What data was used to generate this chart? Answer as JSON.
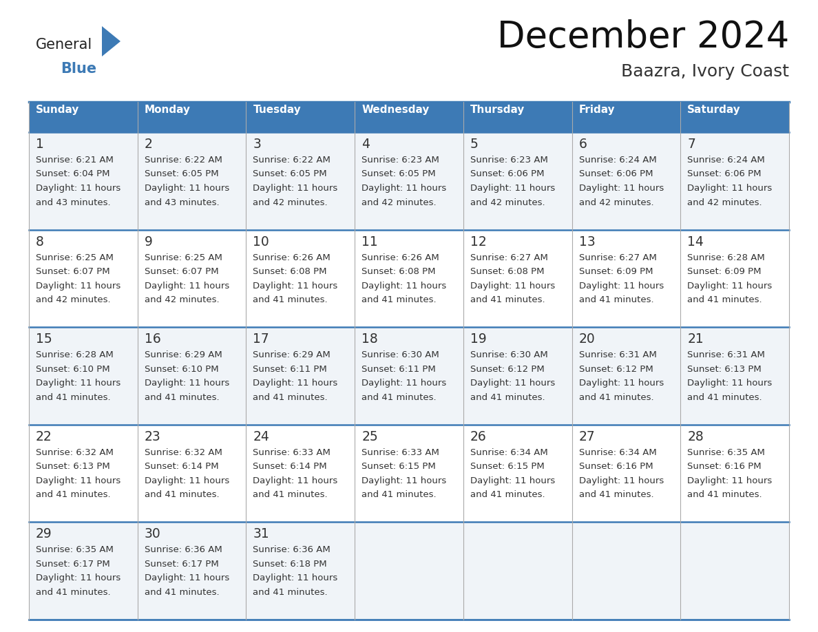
{
  "title": "December 2024",
  "subtitle": "Baazra, Ivory Coast",
  "days_of_week": [
    "Sunday",
    "Monday",
    "Tuesday",
    "Wednesday",
    "Thursday",
    "Friday",
    "Saturday"
  ],
  "header_bg": "#3d7ab5",
  "header_text": "#ffffff",
  "row0_bg": "#f0f4f8",
  "row1_bg": "#ffffff",
  "border_color": "#3d7ab5",
  "day_text_color": "#333333",
  "info_text_color": "#333333",
  "calendar_data": [
    [
      {
        "day": "1",
        "sunrise": "6:21 AM",
        "sunset": "6:04 PM",
        "daylight_h": "11 hours",
        "daylight_m": "and 43 minutes."
      },
      {
        "day": "2",
        "sunrise": "6:22 AM",
        "sunset": "6:05 PM",
        "daylight_h": "11 hours",
        "daylight_m": "and 43 minutes."
      },
      {
        "day": "3",
        "sunrise": "6:22 AM",
        "sunset": "6:05 PM",
        "daylight_h": "11 hours",
        "daylight_m": "and 42 minutes."
      },
      {
        "day": "4",
        "sunrise": "6:23 AM",
        "sunset": "6:05 PM",
        "daylight_h": "11 hours",
        "daylight_m": "and 42 minutes."
      },
      {
        "day": "5",
        "sunrise": "6:23 AM",
        "sunset": "6:06 PM",
        "daylight_h": "11 hours",
        "daylight_m": "and 42 minutes."
      },
      {
        "day": "6",
        "sunrise": "6:24 AM",
        "sunset": "6:06 PM",
        "daylight_h": "11 hours",
        "daylight_m": "and 42 minutes."
      },
      {
        "day": "7",
        "sunrise": "6:24 AM",
        "sunset": "6:06 PM",
        "daylight_h": "11 hours",
        "daylight_m": "and 42 minutes."
      }
    ],
    [
      {
        "day": "8",
        "sunrise": "6:25 AM",
        "sunset": "6:07 PM",
        "daylight_h": "11 hours",
        "daylight_m": "and 42 minutes."
      },
      {
        "day": "9",
        "sunrise": "6:25 AM",
        "sunset": "6:07 PM",
        "daylight_h": "11 hours",
        "daylight_m": "and 42 minutes."
      },
      {
        "day": "10",
        "sunrise": "6:26 AM",
        "sunset": "6:08 PM",
        "daylight_h": "11 hours",
        "daylight_m": "and 41 minutes."
      },
      {
        "day": "11",
        "sunrise": "6:26 AM",
        "sunset": "6:08 PM",
        "daylight_h": "11 hours",
        "daylight_m": "and 41 minutes."
      },
      {
        "day": "12",
        "sunrise": "6:27 AM",
        "sunset": "6:08 PM",
        "daylight_h": "11 hours",
        "daylight_m": "and 41 minutes."
      },
      {
        "day": "13",
        "sunrise": "6:27 AM",
        "sunset": "6:09 PM",
        "daylight_h": "11 hours",
        "daylight_m": "and 41 minutes."
      },
      {
        "day": "14",
        "sunrise": "6:28 AM",
        "sunset": "6:09 PM",
        "daylight_h": "11 hours",
        "daylight_m": "and 41 minutes."
      }
    ],
    [
      {
        "day": "15",
        "sunrise": "6:28 AM",
        "sunset": "6:10 PM",
        "daylight_h": "11 hours",
        "daylight_m": "and 41 minutes."
      },
      {
        "day": "16",
        "sunrise": "6:29 AM",
        "sunset": "6:10 PM",
        "daylight_h": "11 hours",
        "daylight_m": "and 41 minutes."
      },
      {
        "day": "17",
        "sunrise": "6:29 AM",
        "sunset": "6:11 PM",
        "daylight_h": "11 hours",
        "daylight_m": "and 41 minutes."
      },
      {
        "day": "18",
        "sunrise": "6:30 AM",
        "sunset": "6:11 PM",
        "daylight_h": "11 hours",
        "daylight_m": "and 41 minutes."
      },
      {
        "day": "19",
        "sunrise": "6:30 AM",
        "sunset": "6:12 PM",
        "daylight_h": "11 hours",
        "daylight_m": "and 41 minutes."
      },
      {
        "day": "20",
        "sunrise": "6:31 AM",
        "sunset": "6:12 PM",
        "daylight_h": "11 hours",
        "daylight_m": "and 41 minutes."
      },
      {
        "day": "21",
        "sunrise": "6:31 AM",
        "sunset": "6:13 PM",
        "daylight_h": "11 hours",
        "daylight_m": "and 41 minutes."
      }
    ],
    [
      {
        "day": "22",
        "sunrise": "6:32 AM",
        "sunset": "6:13 PM",
        "daylight_h": "11 hours",
        "daylight_m": "and 41 minutes."
      },
      {
        "day": "23",
        "sunrise": "6:32 AM",
        "sunset": "6:14 PM",
        "daylight_h": "11 hours",
        "daylight_m": "and 41 minutes."
      },
      {
        "day": "24",
        "sunrise": "6:33 AM",
        "sunset": "6:14 PM",
        "daylight_h": "11 hours",
        "daylight_m": "and 41 minutes."
      },
      {
        "day": "25",
        "sunrise": "6:33 AM",
        "sunset": "6:15 PM",
        "daylight_h": "11 hours",
        "daylight_m": "and 41 minutes."
      },
      {
        "day": "26",
        "sunrise": "6:34 AM",
        "sunset": "6:15 PM",
        "daylight_h": "11 hours",
        "daylight_m": "and 41 minutes."
      },
      {
        "day": "27",
        "sunrise": "6:34 AM",
        "sunset": "6:16 PM",
        "daylight_h": "11 hours",
        "daylight_m": "and 41 minutes."
      },
      {
        "day": "28",
        "sunrise": "6:35 AM",
        "sunset": "6:16 PM",
        "daylight_h": "11 hours",
        "daylight_m": "and 41 minutes."
      }
    ],
    [
      {
        "day": "29",
        "sunrise": "6:35 AM",
        "sunset": "6:17 PM",
        "daylight_h": "11 hours",
        "daylight_m": "and 41 minutes."
      },
      {
        "day": "30",
        "sunrise": "6:36 AM",
        "sunset": "6:17 PM",
        "daylight_h": "11 hours",
        "daylight_m": "and 41 minutes."
      },
      {
        "day": "31",
        "sunrise": "6:36 AM",
        "sunset": "6:18 PM",
        "daylight_h": "11 hours",
        "daylight_m": "and 41 minutes."
      },
      null,
      null,
      null,
      null
    ]
  ],
  "logo_general_color": "#222222",
  "logo_blue_color": "#3d7ab5"
}
